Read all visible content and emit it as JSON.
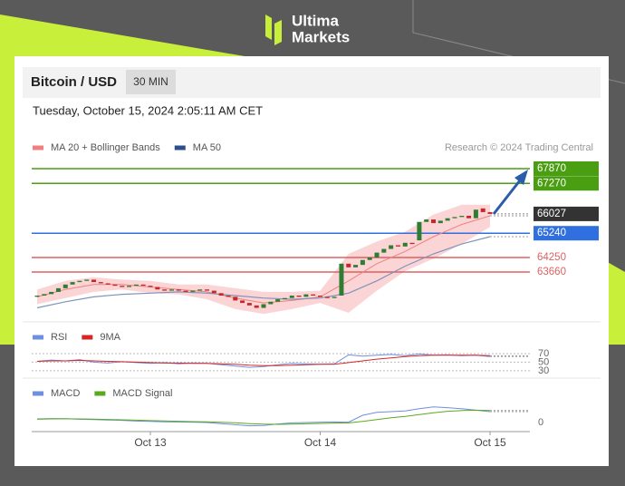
{
  "brand": {
    "name": "Ultima",
    "sub": "Markets"
  },
  "header": {
    "symbol": "Bitcoin / USD",
    "interval": "30 MIN",
    "timestamp": "Tuesday, October 15, 2024 2:05:11 AM CET",
    "credit": "Research © 2024 Trading Central"
  },
  "chart_data": [
    {
      "type": "candlestick",
      "up_color": "#2e7d32",
      "down_color": "#c62828",
      "x": [
        -16,
        -15,
        -14,
        -13,
        -12,
        -11,
        -10,
        -9,
        -8,
        -7,
        -6,
        -5,
        -4,
        -3,
        -2,
        -1,
        0,
        1,
        2,
        3,
        4,
        5,
        6,
        7,
        8,
        9,
        10,
        11,
        12,
        13,
        14,
        15,
        16,
        17,
        18,
        19,
        20,
        21,
        22,
        23,
        24,
        25,
        26,
        27,
        28,
        29,
        30,
        31,
        32,
        33,
        34,
        35,
        36,
        37,
        38,
        39,
        40,
        41,
        42,
        43,
        44,
        45,
        46,
        47,
        48
      ],
      "open": [
        62650,
        62700,
        62760,
        62850,
        63000,
        63150,
        63250,
        63300,
        63350,
        63250,
        63200,
        63150,
        63100,
        63050,
        63100,
        63150,
        63100,
        63050,
        62950,
        62900,
        62950,
        62900,
        62850,
        62900,
        62950,
        62900,
        62800,
        62700,
        62650,
        62500,
        62400,
        62300,
        62200,
        62350,
        62450,
        62550,
        62600,
        62700,
        62650,
        62750,
        62700,
        62650,
        62600,
        62700,
        64000,
        63850,
        63950,
        64150,
        64250,
        64450,
        64600,
        64750,
        64700,
        64850,
        64950,
        65700,
        65800,
        65650,
        65750,
        65850,
        65900,
        65950,
        65850,
        66250,
        66100
      ],
      "close": [
        62700,
        62760,
        62850,
        63000,
        63150,
        63250,
        63300,
        63350,
        63250,
        63200,
        63150,
        63100,
        63050,
        63100,
        63150,
        63100,
        63050,
        62950,
        62900,
        62950,
        62900,
        62850,
        62900,
        62950,
        62900,
        62800,
        62700,
        62650,
        62500,
        62400,
        62300,
        62200,
        62350,
        62450,
        62550,
        62600,
        62700,
        62650,
        62750,
        62700,
        62650,
        62600,
        62650,
        64000,
        63850,
        63950,
        64150,
        64250,
        64450,
        64600,
        64750,
        64700,
        64850,
        64800,
        65700,
        65800,
        65650,
        65750,
        65850,
        65900,
        65950,
        65850,
        66200,
        66100,
        66027
      ],
      "series": [
        {
          "name": "MA 20 + Bollinger Bands",
          "color": "#f08080",
          "band_color": "#fbd5d5",
          "x": [
            -16,
            -12,
            -8,
            -4,
            0,
            4,
            8,
            12,
            16,
            20,
            24,
            28,
            32,
            36,
            40,
            44,
            48
          ],
          "values": [
            62650,
            62950,
            63150,
            63150,
            63050,
            62950,
            62850,
            62600,
            62400,
            62500,
            62650,
            63300,
            64000,
            64500,
            65100,
            65600,
            65950
          ],
          "upper": [
            62950,
            63300,
            63450,
            63350,
            63300,
            63150,
            63150,
            63000,
            62850,
            62850,
            62900,
            64400,
            64900,
            65300,
            66000,
            66400,
            66400
          ],
          "lower": [
            62350,
            62600,
            62850,
            62950,
            62800,
            62750,
            62550,
            62150,
            61950,
            62150,
            62400,
            62000,
            62900,
            63700,
            64200,
            64800,
            65500
          ]
        },
        {
          "name": "MA 50",
          "color": "#2c4f8c",
          "line_color": "#7f93bb",
          "x": [
            -16,
            -12,
            -8,
            -4,
            0,
            4,
            8,
            12,
            16,
            20,
            24,
            28,
            32,
            36,
            40,
            44,
            48
          ],
          "values": [
            62200,
            62450,
            62650,
            62750,
            62800,
            62850,
            62800,
            62700,
            62600,
            62550,
            62600,
            62800,
            63300,
            63900,
            64400,
            64800,
            65100
          ]
        }
      ],
      "levels": [
        {
          "value": 67870,
          "color": "#4a9e12",
          "style": "box",
          "line": "solid"
        },
        {
          "value": 67270,
          "color": "#4a9e12",
          "style": "box",
          "line": "solid"
        },
        {
          "value": 66027,
          "color": "#333333",
          "style": "box",
          "line": "dotted"
        },
        {
          "value": 65240,
          "color": "#2f6fe0",
          "style": "box",
          "line": "solid"
        },
        {
          "value": 64250,
          "color": "#e06060",
          "style": "text",
          "line": "solid"
        },
        {
          "value": 63660,
          "color": "#e06060",
          "style": "text",
          "line": "solid"
        }
      ],
      "ylim": [
        61740,
        68165
      ]
    },
    {
      "type": "line",
      "x": [
        -16,
        -14,
        -12,
        -10,
        -8,
        -6,
        -4,
        -2,
        0,
        2,
        4,
        6,
        8,
        10,
        12,
        14,
        16,
        18,
        20,
        22,
        24,
        26,
        28,
        30,
        32,
        34,
        36,
        38,
        40,
        42,
        44,
        46,
        48
      ],
      "series": [
        {
          "name": "RSI",
          "color": "#6f8fe0",
          "values": [
            52,
            55,
            53,
            56,
            50,
            48,
            51,
            49,
            47,
            49,
            46,
            48,
            47,
            44,
            41,
            38,
            40,
            44,
            47,
            46,
            45,
            46,
            67,
            64,
            66,
            68,
            65,
            69,
            66,
            67,
            65,
            66,
            63
          ]
        },
        {
          "name": "9MA",
          "color": "#d62728",
          "values": [
            52,
            53,
            53,
            54,
            53,
            52,
            51,
            50,
            49,
            48,
            48,
            47,
            47,
            46,
            45,
            43,
            42,
            42,
            43,
            44,
            45,
            45,
            49,
            53,
            57,
            60,
            63,
            65,
            66,
            66,
            66,
            66,
            65
          ]
        }
      ],
      "ylim": [
        15,
        91
      ],
      "yticks": [
        70,
        50,
        30
      ],
      "grid": true
    },
    {
      "type": "line",
      "x": [
        -16,
        -14,
        -12,
        -10,
        -8,
        -6,
        -4,
        -2,
        0,
        2,
        4,
        6,
        8,
        10,
        12,
        14,
        16,
        18,
        20,
        22,
        24,
        26,
        28,
        30,
        32,
        34,
        36,
        38,
        40,
        42,
        44,
        46,
        48
      ],
      "series": [
        {
          "name": "MACD",
          "color": "#6f8fe0",
          "values": [
            100,
            110,
            105,
            90,
            80,
            70,
            60,
            40,
            30,
            20,
            15,
            10,
            0,
            -30,
            -60,
            -90,
            -80,
            -40,
            -10,
            0,
            10,
            15,
            10,
            200,
            280,
            300,
            320,
            380,
            430,
            410,
            380,
            340,
            300
          ]
        },
        {
          "name": "MACD Signal",
          "color": "#5aaa1e",
          "values": [
            90,
            100,
            102,
            100,
            92,
            84,
            74,
            64,
            52,
            42,
            34,
            26,
            20,
            8,
            -8,
            -30,
            -45,
            -50,
            -45,
            -35,
            -25,
            -15,
            -10,
            30,
            80,
            130,
            170,
            220,
            270,
            310,
            330,
            340,
            330
          ]
        }
      ],
      "ylim": [
        -250,
        650
      ],
      "yticks": [
        0
      ],
      "grid": false,
      "xlim": [
        -16.77,
        53.63
      ],
      "xticks": [
        {
          "value": 0,
          "label": "Oct 13"
        },
        {
          "value": 24,
          "label": "Oct 14"
        },
        {
          "value": 48,
          "label": "Oct 15"
        }
      ]
    }
  ]
}
